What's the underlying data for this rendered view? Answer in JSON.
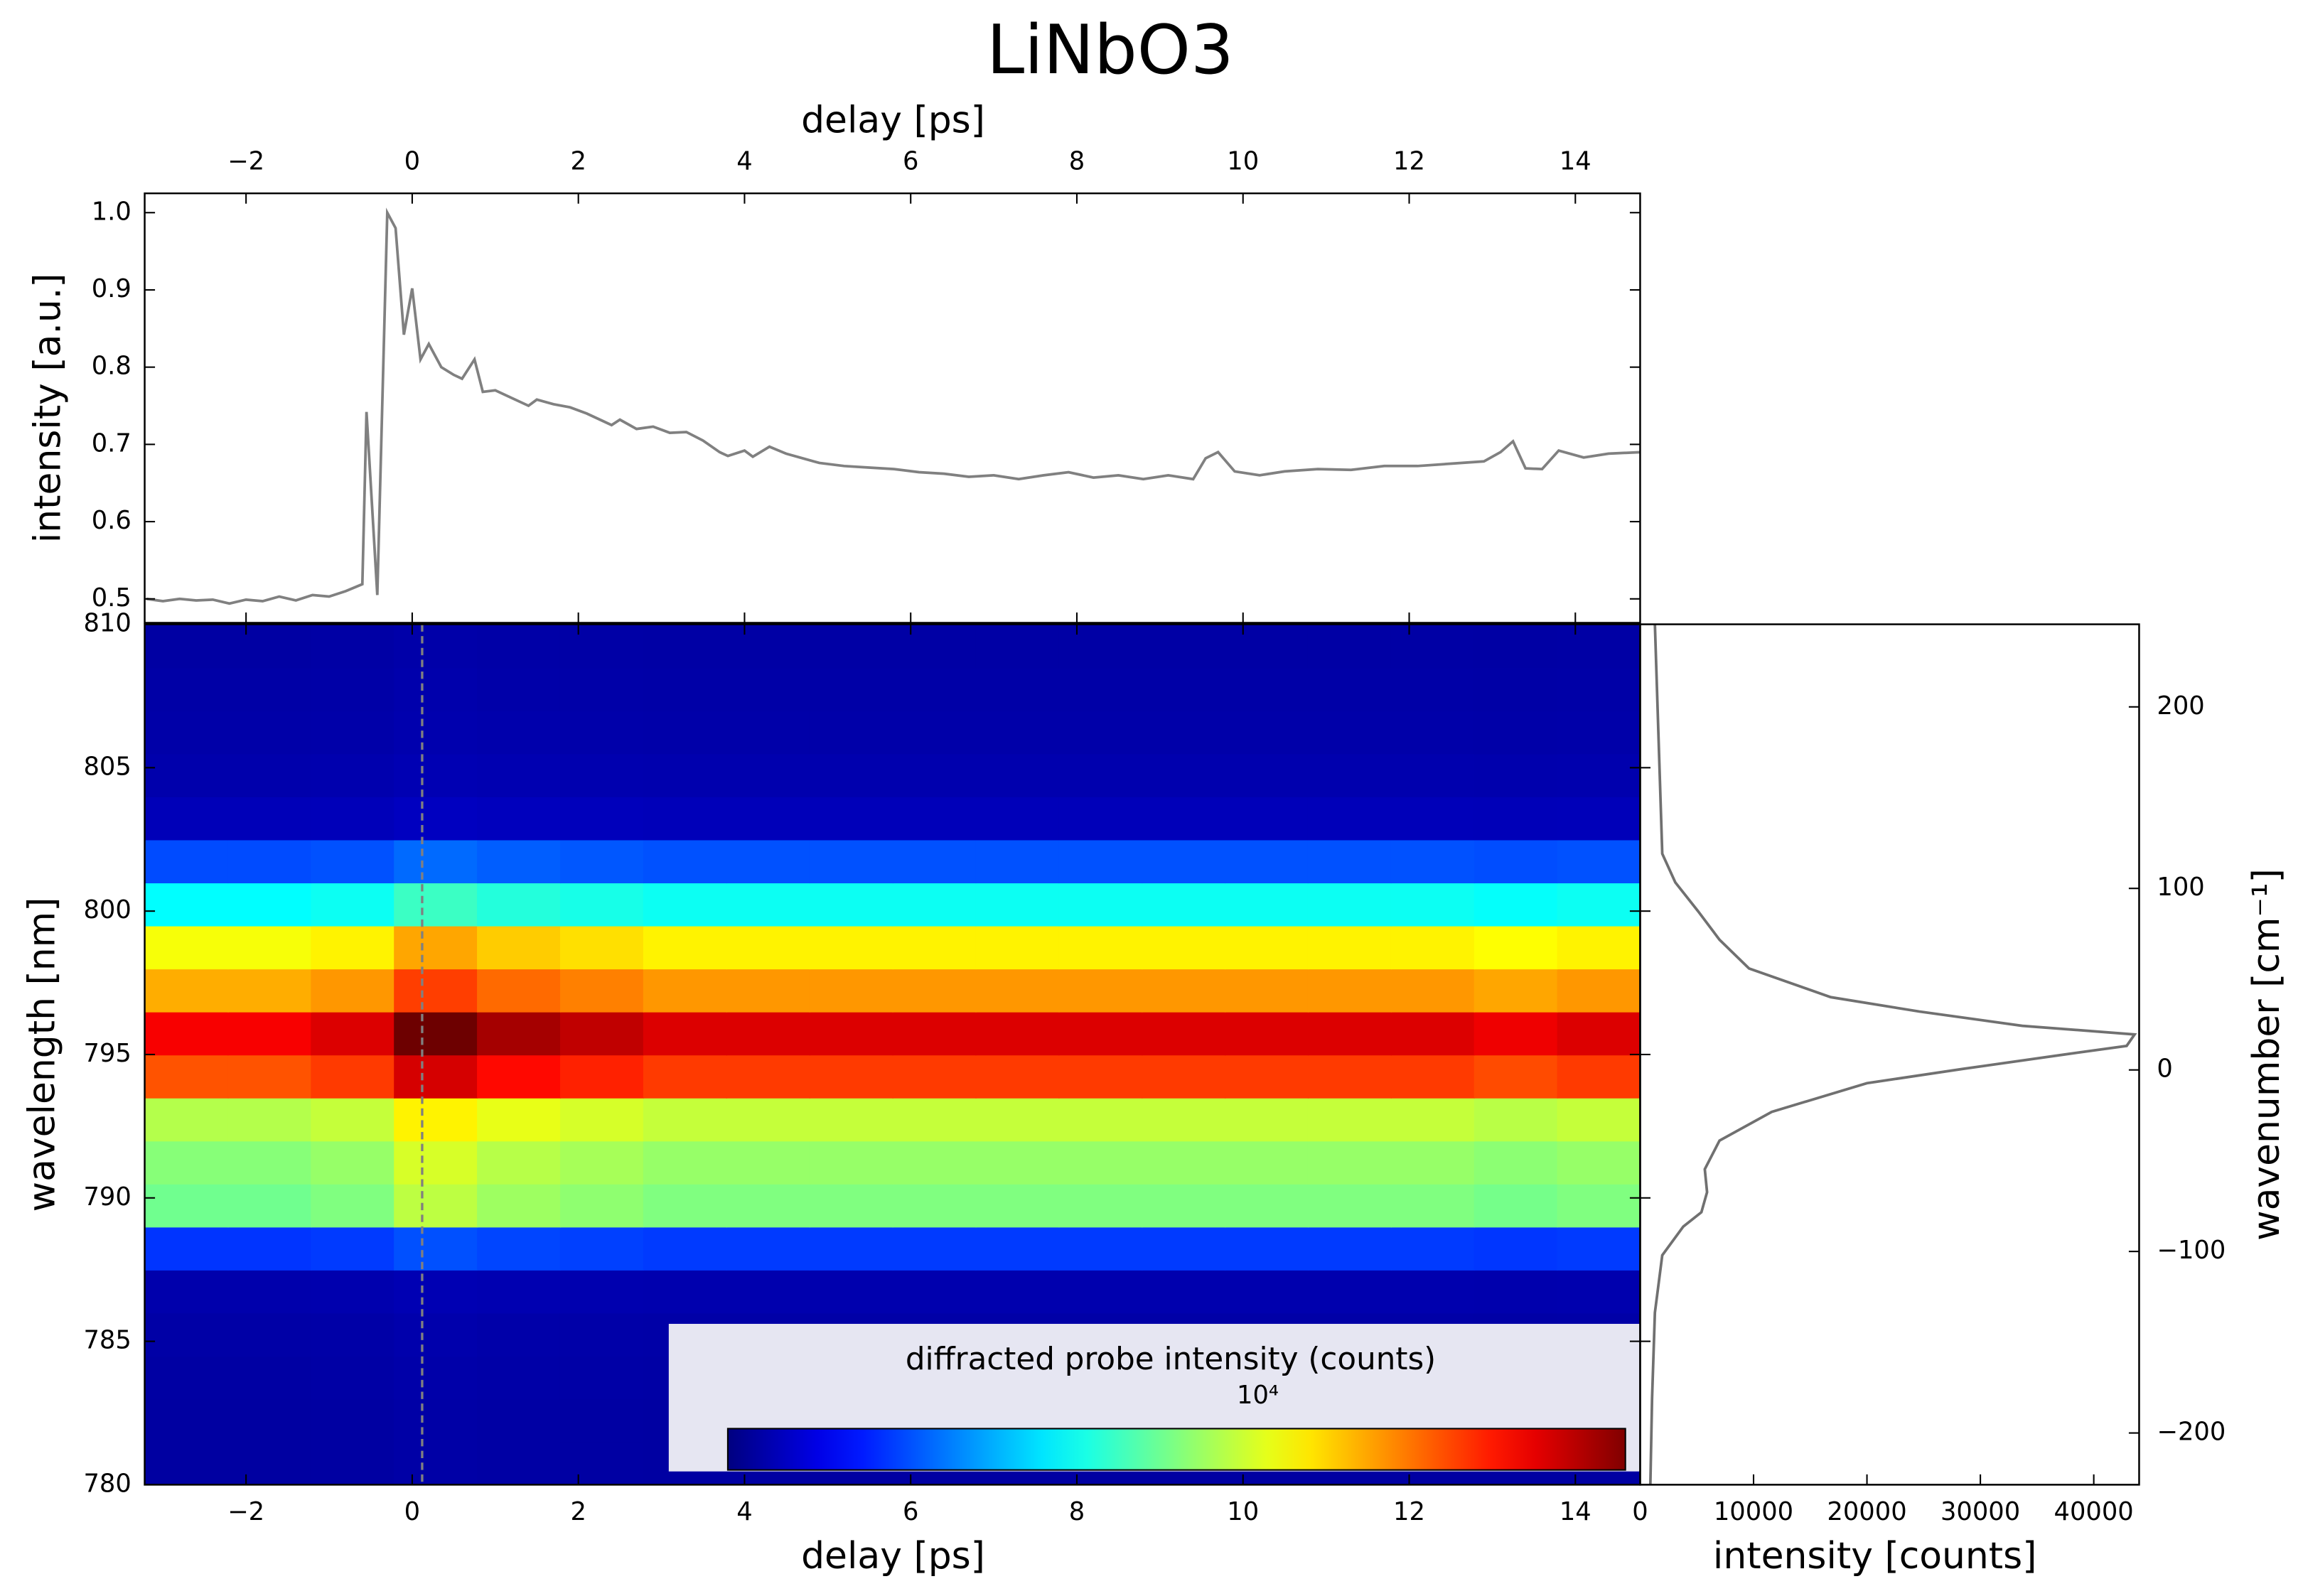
{
  "chart_data": [
    {
      "type": "line",
      "title": "LiNbO3",
      "xlabel": "delay [ps]",
      "ylabel": "intensity [a.u.]",
      "x": [
        -3.2,
        -3.0,
        -2.8,
        -2.6,
        -2.4,
        -2.2,
        -2.0,
        -1.8,
        -1.6,
        -1.4,
        -1.2,
        -1.0,
        -0.8,
        -0.6,
        -0.55,
        -0.42,
        -0.3,
        -0.2,
        -0.1,
        0.0,
        0.1,
        0.2,
        0.35,
        0.5,
        0.6,
        0.75,
        0.85,
        1.0,
        1.2,
        1.4,
        1.5,
        1.7,
        1.9,
        2.1,
        2.3,
        2.4,
        2.5,
        2.7,
        2.9,
        3.1,
        3.3,
        3.5,
        3.7,
        3.8,
        4.0,
        4.1,
        4.3,
        4.5,
        4.7,
        4.9,
        5.2,
        5.5,
        5.8,
        6.1,
        6.4,
        6.7,
        7.0,
        7.3,
        7.6,
        7.9,
        8.2,
        8.5,
        8.8,
        9.1,
        9.4,
        9.55,
        9.7,
        9.9,
        10.2,
        10.5,
        10.9,
        11.3,
        11.7,
        12.1,
        12.5,
        12.9,
        13.1,
        13.25,
        13.4,
        13.6,
        13.8,
        14.1,
        14.4,
        14.8
      ],
      "series": [
        {
          "color": "#808080",
          "values": [
            0.5,
            0.497,
            0.5,
            0.498,
            0.499,
            0.494,
            0.499,
            0.497,
            0.503,
            0.498,
            0.505,
            0.503,
            0.51,
            0.519,
            0.742,
            0.505,
            1.0,
            0.98,
            0.842,
            0.902,
            0.81,
            0.83,
            0.8,
            0.79,
            0.785,
            0.81,
            0.768,
            0.77,
            0.76,
            0.75,
            0.758,
            0.752,
            0.748,
            0.74,
            0.73,
            0.725,
            0.732,
            0.72,
            0.723,
            0.715,
            0.716,
            0.705,
            0.69,
            0.685,
            0.692,
            0.684,
            0.697,
            0.688,
            0.682,
            0.676,
            0.672,
            0.67,
            0.668,
            0.664,
            0.662,
            0.658,
            0.66,
            0.655,
            0.66,
            0.664,
            0.657,
            0.66,
            0.655,
            0.66,
            0.655,
            0.682,
            0.69,
            0.665,
            0.66,
            0.665,
            0.668,
            0.667,
            0.672,
            0.672,
            0.675,
            0.678,
            0.69,
            0.704,
            0.669,
            0.668,
            0.692,
            0.683,
            0.688,
            0.69
          ]
        }
      ],
      "xlim": [
        -3.22,
        14.78
      ],
      "xticks": [
        {
          "value": -2,
          "label": "−2"
        },
        0,
        2,
        4,
        6,
        8,
        10,
        12,
        14
      ],
      "ylim": [
        0.469,
        1.025
      ],
      "yticks": [
        0.5,
        0.6,
        0.7,
        0.8,
        0.9,
        {
          "value": 1,
          "label": "1.0"
        }
      ]
    },
    {
      "type": "heatmap",
      "xlabel": "delay [ps]",
      "ylabel": "wavelength [nm]",
      "x": [
        -2.72,
        -1.72,
        -0.72,
        0.28,
        1.28,
        2.28,
        3.28,
        4.28,
        5.28,
        6.28,
        7.28,
        8.28,
        9.28,
        10.28,
        11.28,
        12.28,
        13.28,
        14.28
      ],
      "y": [
        780.75,
        782.25,
        783.75,
        785.25,
        786.75,
        788.25,
        789.75,
        791.25,
        792.75,
        794.25,
        795.75,
        797.25,
        798.75,
        800.25,
        801.75,
        803.25,
        804.75,
        806.25,
        807.75,
        809.25
      ],
      "z": [
        [
          1455,
          1455,
          1500,
          1680,
          1590,
          1545,
          1500,
          1500,
          1500,
          1500,
          1500,
          1500,
          1500,
          1500,
          1500,
          1500,
          1470,
          1500
        ],
        [
          1455,
          1455,
          1500,
          1680,
          1590,
          1545,
          1500,
          1500,
          1500,
          1500,
          1500,
          1500,
          1500,
          1500,
          1500,
          1500,
          1470,
          1500
        ],
        [
          1552,
          1552,
          1600,
          1792,
          1696,
          1648,
          1600,
          1600,
          1600,
          1600,
          1600,
          1600,
          1600,
          1600,
          1600,
          1600,
          1568,
          1600
        ],
        [
          1649,
          1649,
          1700,
          1904,
          1802,
          1751,
          1700,
          1700,
          1700,
          1700,
          1700,
          1700,
          1700,
          1700,
          1700,
          1700,
          1666,
          1700
        ],
        [
          1940,
          1940,
          2000,
          2240,
          2120,
          2060,
          2000,
          2000,
          2000,
          2000,
          2000,
          2000,
          2000,
          2000,
          2000,
          2000,
          1960,
          2000
        ],
        [
          7760,
          7760,
          8000,
          8960,
          8480,
          8240,
          8000,
          8000,
          8000,
          8000,
          8000,
          8000,
          8000,
          8000,
          8000,
          8000,
          7840,
          8000
        ],
        [
          21340,
          21340,
          22000,
          24640,
          23320,
          22660,
          22000,
          22000,
          22000,
          22000,
          22000,
          22000,
          22000,
          22000,
          22000,
          22000,
          21560,
          22000
        ],
        [
          22310,
          22310,
          23000,
          25760,
          24380,
          23690,
          23000,
          23000,
          23000,
          23000,
          23000,
          23000,
          23000,
          23000,
          23000,
          23000,
          22540,
          23000
        ],
        [
          24250,
          24250,
          25000,
          28000,
          26500,
          25750,
          25000,
          25000,
          25000,
          25000,
          25000,
          25000,
          25000,
          25000,
          25000,
          25000,
          24500,
          25000
        ],
        [
          34920,
          34920,
          36000,
          40320,
          38160,
          37080,
          36000,
          36000,
          36000,
          36000,
          36000,
          36000,
          36000,
          36000,
          36000,
          36000,
          35280,
          36000
        ],
        [
          38800,
          38800,
          40000,
          44800,
          42400,
          41200,
          40000,
          40000,
          40000,
          40000,
          40000,
          40000,
          40000,
          40000,
          40000,
          40000,
          39200,
          40000
        ],
        [
          31040,
          31040,
          32000,
          35840,
          33920,
          32960,
          32000,
          32000,
          32000,
          32000,
          32000,
          32000,
          32000,
          32000,
          32000,
          32000,
          31360,
          32000
        ],
        [
          27160,
          27160,
          28000,
          31360,
          29680,
          28840,
          28000,
          28000,
          28000,
          28000,
          28000,
          28000,
          28000,
          28000,
          28000,
          28000,
          27440,
          28000
        ],
        [
          16490,
          16490,
          17000,
          19040,
          18020,
          17510,
          17000,
          17000,
          17000,
          17000,
          17000,
          17000,
          17000,
          17000,
          17000,
          17000,
          16660,
          17000
        ],
        [
          8730,
          8730,
          9000,
          10080,
          9540,
          9270,
          9000,
          9000,
          9000,
          9000,
          9000,
          9000,
          9000,
          9000,
          9000,
          9000,
          8820,
          9000
        ],
        [
          2425,
          2425,
          2500,
          2800,
          2650,
          2575,
          2500,
          2500,
          2500,
          2500,
          2500,
          2500,
          2500,
          2500,
          2500,
          2500,
          2450,
          2500
        ],
        [
          1940,
          1940,
          2000,
          2240,
          2120,
          2060,
          2000,
          2000,
          2000,
          2000,
          2000,
          2000,
          2000,
          2000,
          2000,
          2000,
          1960,
          2000
        ],
        [
          1746,
          1746,
          1800,
          2016,
          1908,
          1854,
          1800,
          1800,
          1800,
          1800,
          1800,
          1800,
          1800,
          1800,
          1800,
          1800,
          1764,
          1800
        ],
        [
          1649,
          1649,
          1700,
          1904,
          1802,
          1751,
          1700,
          1700,
          1700,
          1700,
          1700,
          1700,
          1700,
          1700,
          1700,
          1700,
          1666,
          1700
        ],
        [
          1552,
          1552,
          1600,
          1792,
          1696,
          1648,
          1600,
          1600,
          1600,
          1600,
          1600,
          1600,
          1600,
          1600,
          1600,
          1600,
          1568,
          1600
        ]
      ],
      "xlim": [
        -3.22,
        14.78
      ],
      "xticks": [
        {
          "value": -2,
          "label": "−2"
        },
        0,
        2,
        4,
        6,
        8,
        10,
        12,
        14
      ],
      "ylim": [
        780,
        810
      ],
      "yticks": [
        780,
        785,
        790,
        795,
        800,
        805,
        810
      ],
      "colormap": "jet",
      "clim": [
        0,
        44000
      ],
      "colorbar_label": "diffracted probe intensity (counts)",
      "colorbar_offset": "10⁴",
      "vline": {
        "x": 0.12,
        "color": "#808080"
      }
    },
    {
      "type": "line",
      "orientation": "horizontal",
      "xlabel": "intensity [counts]",
      "y2label": "wavenumber [cm⁻¹]",
      "y": [
        810,
        802,
        801,
        800,
        799,
        798,
        797,
        796.5,
        796,
        795.7,
        795.3,
        795,
        794.5,
        794,
        793,
        792,
        791,
        790.2,
        789.5,
        789,
        788,
        786,
        783,
        780
      ],
      "series": [
        {
          "color": "#707070",
          "values": [
            1300,
            1950,
            3100,
            5100,
            7000,
            9600,
            16800,
            24600,
            33700,
            43600,
            42900,
            37400,
            28500,
            20000,
            11600,
            7000,
            5700,
            5900,
            5400,
            3800,
            1950,
            1300,
            1050,
            900
          ]
        }
      ],
      "xlim": [
        0,
        44000
      ],
      "xticks": [
        0,
        10000,
        20000,
        30000,
        40000
      ],
      "ylim": [
        780,
        810
      ],
      "y2lim": [
        -228.5,
        245.5
      ],
      "y2ticks": [
        {
          "value": -200,
          "label": "−200"
        },
        {
          "value": -100,
          "label": "−100"
        },
        0,
        100,
        200
      ]
    }
  ]
}
